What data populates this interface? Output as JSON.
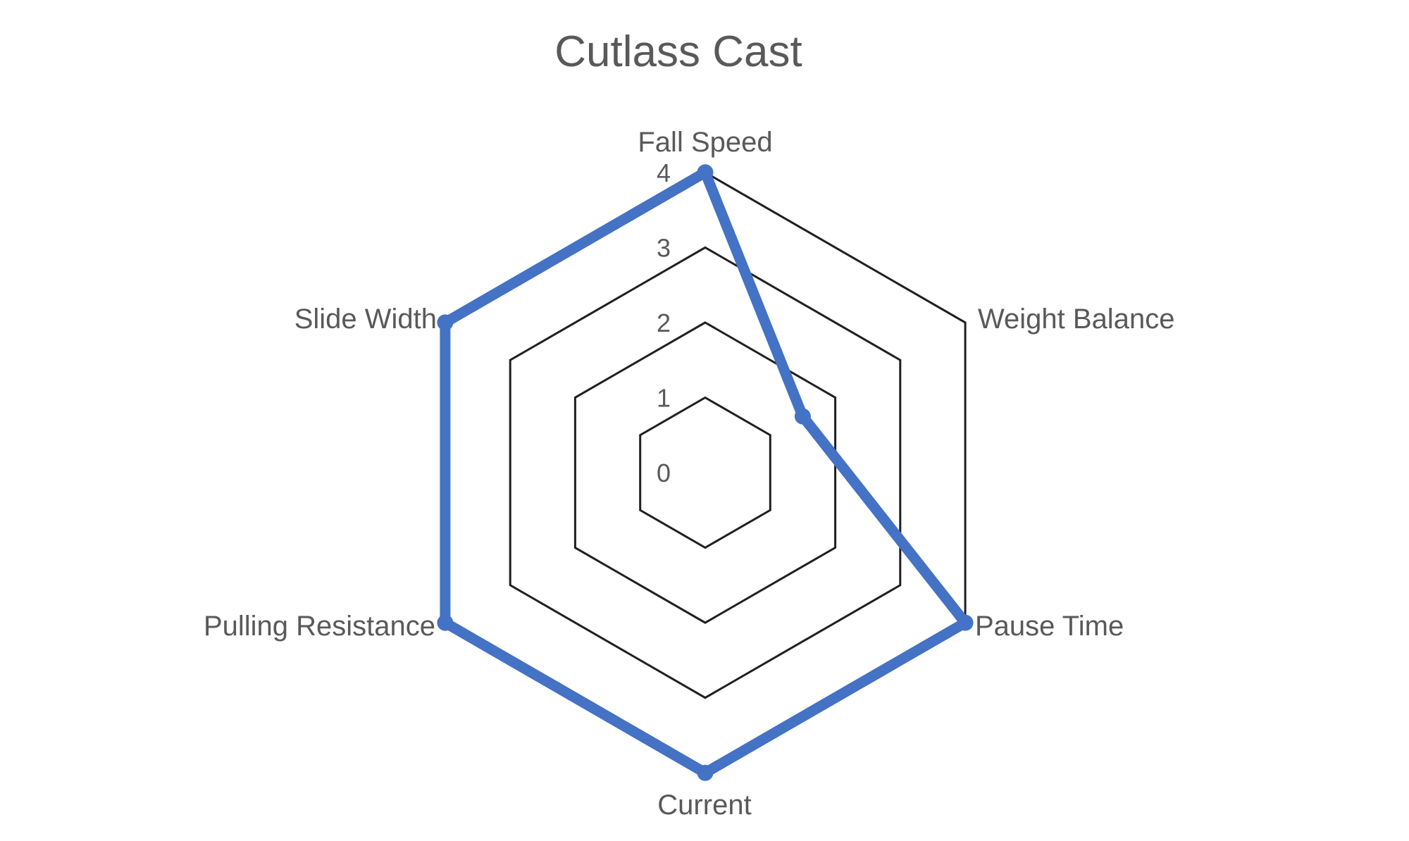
{
  "title": "Cutlass Cast",
  "chart_data": {
    "type": "radar",
    "title": "Cutlass Cast",
    "categories": [
      "Fall Speed",
      "Weight Balance",
      "Pause Time",
      "Current",
      "Pulling Resistance",
      "Slide Width"
    ],
    "series": [
      {
        "name": "Cutlass Cast",
        "values": [
          4,
          1.5,
          4,
          4,
          4,
          4
        ]
      }
    ],
    "axis_min": 0,
    "axis_max": 4,
    "rings": [
      0,
      1,
      2,
      3,
      4
    ],
    "tick_labels": [
      "0",
      "1",
      "2",
      "3",
      "4"
    ],
    "grid": true,
    "legend_position": "none",
    "accent_color": "#4472C4",
    "grid_color": "#1f1f1f",
    "label_color": "#595959",
    "background_color": "#ffffff"
  }
}
